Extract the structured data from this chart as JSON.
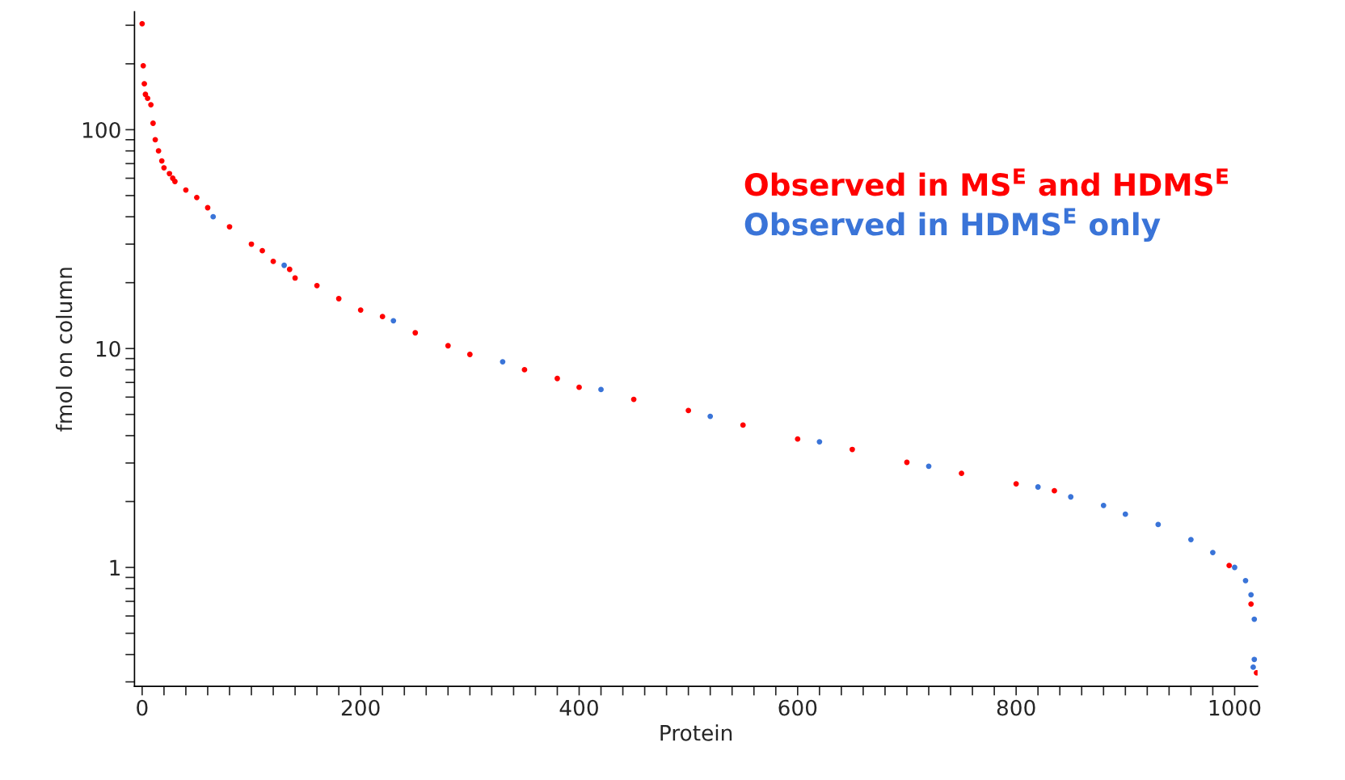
{
  "chart_data": {
    "type": "scatter",
    "xlabel": "Protein",
    "ylabel": "fmol on column",
    "log": "y",
    "grid": false,
    "legend": "right",
    "marker": "circle",
    "xlim": [
      -7,
      1021
    ],
    "ylim": [
      0.286,
      346
    ],
    "xticks": [
      0,
      {
        "value": 20,
        "label": null
      },
      {
        "value": 40,
        "label": null
      },
      {
        "value": 60,
        "label": null
      },
      {
        "value": 80,
        "label": null
      },
      {
        "value": 100,
        "label": null
      },
      {
        "value": 120,
        "label": null
      },
      {
        "value": 140,
        "label": null
      },
      {
        "value": 160,
        "label": null
      },
      {
        "value": 180,
        "label": null
      },
      200,
      {
        "value": 220,
        "label": null
      },
      {
        "value": 240,
        "label": null
      },
      {
        "value": 260,
        "label": null
      },
      {
        "value": 280,
        "label": null
      },
      {
        "value": 300,
        "label": null
      },
      {
        "value": 320,
        "label": null
      },
      {
        "value": 340,
        "label": null
      },
      {
        "value": 360,
        "label": null
      },
      {
        "value": 380,
        "label": null
      },
      400,
      {
        "value": 420,
        "label": null
      },
      {
        "value": 440,
        "label": null
      },
      {
        "value": 460,
        "label": null
      },
      {
        "value": 480,
        "label": null
      },
      {
        "value": 500,
        "label": null
      },
      {
        "value": 520,
        "label": null
      },
      {
        "value": 540,
        "label": null
      },
      {
        "value": 560,
        "label": null
      },
      {
        "value": 580,
        "label": null
      },
      600,
      {
        "value": 620,
        "label": null
      },
      {
        "value": 640,
        "label": null
      },
      {
        "value": 660,
        "label": null
      },
      {
        "value": 680,
        "label": null
      },
      {
        "value": 700,
        "label": null
      },
      {
        "value": 720,
        "label": null
      },
      {
        "value": 740,
        "label": null
      },
      {
        "value": 760,
        "label": null
      },
      {
        "value": 780,
        "label": null
      },
      800,
      {
        "value": 820,
        "label": null
      },
      {
        "value": 840,
        "label": null
      },
      {
        "value": 860,
        "label": null
      },
      {
        "value": 880,
        "label": null
      },
      {
        "value": 900,
        "label": null
      },
      {
        "value": 920,
        "label": null
      },
      {
        "value": 940,
        "label": null
      },
      {
        "value": 960,
        "label": null
      },
      {
        "value": 980,
        "label": null
      },
      1000
    ],
    "yticks": [
      {
        "value": 0.3,
        "label": null
      },
      {
        "value": 0.4,
        "label": null
      },
      {
        "value": 0.5,
        "label": null
      },
      {
        "value": 0.6,
        "label": null
      },
      {
        "value": 0.7,
        "label": null
      },
      {
        "value": 0.8,
        "label": null
      },
      {
        "value": 0.9,
        "label": null
      },
      1,
      {
        "value": 2,
        "label": null
      },
      {
        "value": 3,
        "label": null
      },
      {
        "value": 4,
        "label": null
      },
      {
        "value": 5,
        "label": null
      },
      {
        "value": 6,
        "label": null
      },
      {
        "value": 7,
        "label": null
      },
      {
        "value": 8,
        "label": null
      },
      {
        "value": 9,
        "label": null
      },
      10,
      {
        "value": 20,
        "label": null
      },
      {
        "value": 30,
        "label": null
      },
      {
        "value": 40,
        "label": null
      },
      {
        "value": 50,
        "label": null
      },
      {
        "value": 60,
        "label": null
      },
      {
        "value": 70,
        "label": null
      },
      {
        "value": 80,
        "label": null
      },
      {
        "value": 90,
        "label": null
      },
      100,
      {
        "value": 200,
        "label": null
      },
      {
        "value": 300,
        "label": null
      }
    ],
    "series": [
      {
        "name": "Observed in MS$^{E}$ and HDMS$^{E}$",
        "color": "#ff0000",
        "x": [
          0,
          1,
          2,
          3,
          5,
          8,
          10,
          12,
          15,
          18,
          20,
          25,
          28,
          30,
          40,
          50,
          60,
          80,
          100,
          110,
          120,
          135,
          140,
          160,
          180,
          200,
          220,
          250,
          280,
          300,
          350,
          380,
          400,
          450,
          500,
          550,
          600,
          650,
          700,
          750,
          800,
          835,
          995,
          1015,
          1020
        ],
        "values": [
          305,
          196,
          162,
          145,
          139,
          130,
          107,
          90,
          80,
          72,
          67,
          63,
          60,
          58,
          53,
          49,
          44,
          36,
          30,
          28,
          25,
          23,
          21,
          19.4,
          16.9,
          15,
          14,
          11.8,
          10.3,
          9.4,
          8,
          7.3,
          6.65,
          5.86,
          5.21,
          4.47,
          3.86,
          3.46,
          3.02,
          2.69,
          2.41,
          2.24,
          1.02,
          0.68,
          0.33
        ]
      },
      {
        "name": "Observed in HDMS$^{E}$ only",
        "color": "#3a74d8",
        "x": [
          65,
          130,
          230,
          330,
          420,
          520,
          620,
          720,
          820,
          850,
          880,
          900,
          930,
          960,
          980,
          1000,
          1010,
          1015,
          1018,
          1018,
          1017
        ],
        "values": [
          40,
          24,
          13.4,
          8.7,
          6.5,
          4.9,
          3.75,
          2.9,
          2.33,
          2.1,
          1.92,
          1.75,
          1.57,
          1.34,
          1.17,
          1.0,
          0.87,
          0.75,
          0.58,
          0.38,
          0.35
        ]
      }
    ]
  }
}
